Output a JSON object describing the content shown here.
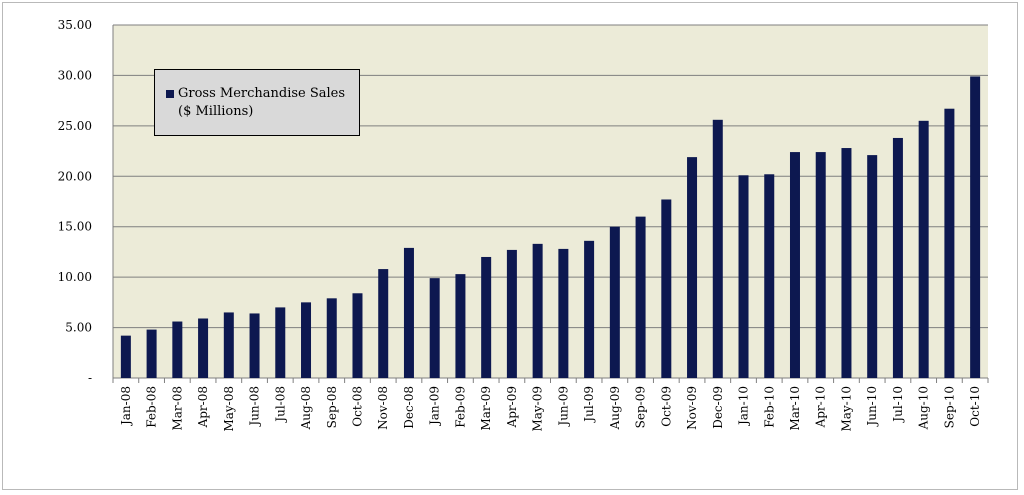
{
  "chart_data": {
    "type": "bar",
    "categories": [
      "Jan-08",
      "Feb-08",
      "Mar-08",
      "Apr-08",
      "May-08",
      "Jun-08",
      "Jul-08",
      "Aug-08",
      "Sep-08",
      "Oct-08",
      "Nov-08",
      "Dec-08",
      "Jan-09",
      "Feb-09",
      "Mar-09",
      "Apr-09",
      "May-09",
      "Jun-09",
      "Jul-09",
      "Aug-09",
      "Sep-09",
      "Oct-09",
      "Nov-09",
      "Dec-09",
      "Jan-10",
      "Feb-10",
      "Mar-10",
      "Apr-10",
      "May-10",
      "Jun-10",
      "Jul-10",
      "Aug-10",
      "Sep-10",
      "Oct-10"
    ],
    "series": [
      {
        "name": "Gross Merchandise Sales ($ Millions)",
        "values": [
          4.2,
          4.8,
          5.6,
          5.9,
          6.5,
          6.4,
          7.0,
          7.5,
          7.9,
          8.4,
          10.8,
          12.9,
          9.9,
          10.3,
          12.0,
          12.7,
          13.3,
          12.8,
          13.6,
          15.0,
          16.0,
          17.7,
          21.9,
          25.6,
          20.1,
          20.2,
          22.4,
          22.4,
          22.8,
          22.1,
          23.8,
          25.5,
          26.7,
          29.9
        ]
      }
    ],
    "legend": {
      "line1": "Gross Merchandise  Sales",
      "line2": "($ Millions)",
      "placement": "top-left"
    },
    "yticks": [
      "-",
      "5.00",
      "10.00",
      "15.00",
      "20.00",
      "25.00",
      "30.00",
      "35.00"
    ],
    "ylim": [
      0,
      35
    ],
    "grid": true,
    "colors": {
      "bar": "#0d1850",
      "plot_bg": "#ecebd8",
      "grid": "#7f7f7f",
      "legend_bg": "#d9d9d9"
    }
  }
}
